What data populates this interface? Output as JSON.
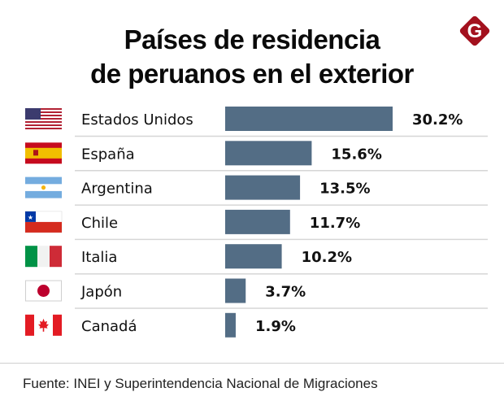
{
  "header": {
    "title_line1": "Países de residencia",
    "title_line2": "de peruanos en el exterior",
    "logo": {
      "icon": "g-diamond-logo-icon",
      "letter": "G",
      "color": "#a3111e"
    }
  },
  "colors": {
    "bar": "#536d85",
    "separator": "#d6d6d6",
    "text": "#111111"
  },
  "chart_data": {
    "type": "bar",
    "orientation": "horizontal",
    "title": "Países de residencia de peruanos en el exterior",
    "xlabel": "",
    "ylabel": "",
    "unit": "%",
    "categories": [
      "Estados Unidos",
      "España",
      "Argentina",
      "Chile",
      "Italia",
      "Japón",
      "Canadá"
    ],
    "values": [
      30.2,
      15.6,
      13.5,
      11.7,
      10.2,
      3.7,
      1.9
    ],
    "value_labels": [
      "30.2%",
      "15.6%",
      "13.5%",
      "11.7%",
      "10.2%",
      "3.7%",
      "1.9%"
    ],
    "flags": [
      "us-flag-icon",
      "spain-flag-icon",
      "argentina-flag-icon",
      "chile-flag-icon",
      "italy-flag-icon",
      "japan-flag-icon",
      "canada-flag-icon"
    ],
    "xlim": [
      0,
      30.2
    ],
    "grid": false,
    "legend": "none"
  },
  "footer": {
    "source": "Fuente: INEI y Superintendencia Nacional de Migraciones"
  }
}
